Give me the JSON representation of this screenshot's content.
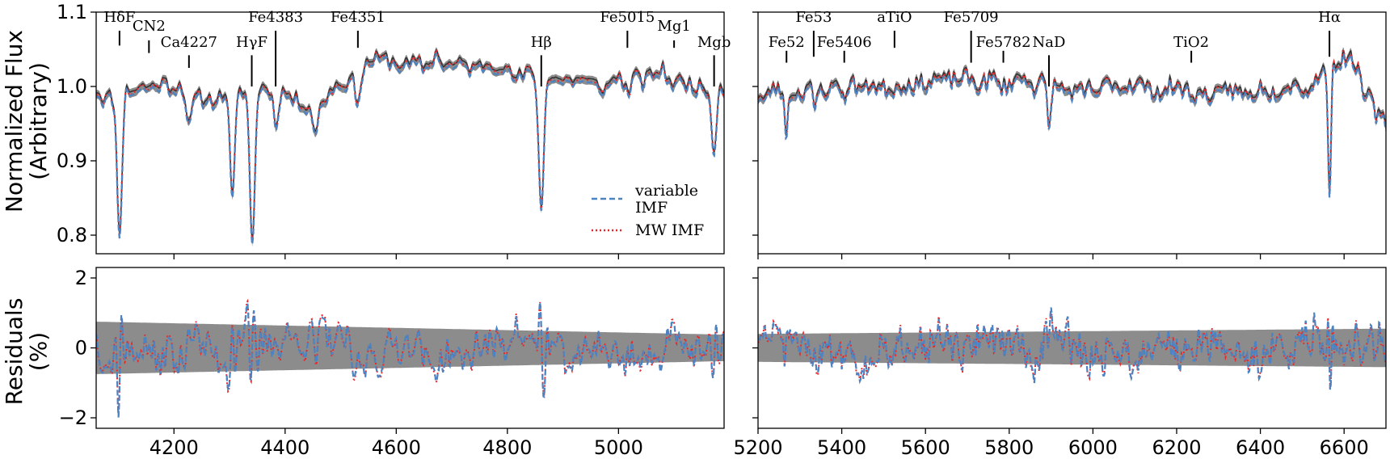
{
  "chart_data": [
    {
      "type": "line",
      "panel": "top-left",
      "ylabel": [
        "Normalized Flux",
        "(Arbitrary)"
      ],
      "xlim": [
        4060,
        5190
      ],
      "ylim": [
        0.775,
        1.1
      ],
      "xticks": [
        4200,
        4400,
        4600,
        4800,
        5000
      ],
      "yticks": [
        0.8,
        0.9,
        1.0,
        1.1
      ],
      "ytick_labels": [
        "0.8",
        "0.9",
        "1.0",
        "1.1"
      ],
      "series": [
        {
          "name": "variable IMF",
          "style": "dashed",
          "color": "#4C83C2"
        },
        {
          "name": "MW IMF",
          "style": "dotted",
          "color": "#E8262A"
        }
      ],
      "data_band": "grey",
      "absorption_lines": [
        {
          "x": 4102,
          "depth": 0.185
        },
        {
          "x": 4227,
          "depth": 0.04
        },
        {
          "x": 4305,
          "depth": 0.15
        },
        {
          "x": 4341,
          "depth": 0.21
        },
        {
          "x": 4383,
          "depth": 0.05
        },
        {
          "x": 4455,
          "depth": 0.03
        },
        {
          "x": 4531,
          "depth": 0.03
        },
        {
          "x": 4861,
          "depth": 0.18
        },
        {
          "x": 5016,
          "depth": 0.02
        },
        {
          "x": 5172,
          "depth": 0.08
        }
      ],
      "annotations": [
        {
          "label": "HδF",
          "x": 4102,
          "y_label": 1.087,
          "y_top": 1.075,
          "y_bot": 1.055
        },
        {
          "label": "CN2",
          "x": 4155,
          "y_label": 1.075,
          "y_top": 1.062,
          "y_bot": 1.045
        },
        {
          "label": "Ca4227",
          "x": 4227,
          "y_label": 1.053,
          "y_top": 1.042,
          "y_bot": 1.025
        },
        {
          "label": "HγF",
          "x": 4340,
          "y_label": 1.053,
          "y_top": 1.042,
          "y_bot": 1.0
        },
        {
          "label": "Fe4383",
          "x": 4383,
          "y_label": 1.087,
          "y_top": 1.075,
          "y_bot": 1.0
        },
        {
          "label": "Fe4351",
          "x": 4531,
          "y_label": 1.087,
          "y_top": 1.075,
          "y_bot": 1.052
        },
        {
          "label": "Hβ",
          "x": 4861,
          "y_label": 1.053,
          "y_top": 1.042,
          "y_bot": 1.0
        },
        {
          "label": "Fe5015",
          "x": 5016,
          "y_label": 1.087,
          "y_top": 1.075,
          "y_bot": 1.052
        },
        {
          "label": "Mg1",
          "x": 5100,
          "y_label": 1.075,
          "y_top": 1.062,
          "y_bot": 1.052
        },
        {
          "label": "Mgb",
          "x": 5172,
          "y_label": 1.053,
          "y_top": 1.042,
          "y_bot": 1.0
        }
      ],
      "legend": {
        "placement": "lower-right",
        "entries": [
          "variable",
          "IMF",
          "MW IMF"
        ]
      }
    },
    {
      "type": "line",
      "panel": "top-right",
      "xlim": [
        5200,
        6700
      ],
      "ylim": [
        0.775,
        1.1
      ],
      "xticks": [
        5200,
        5400,
        5600,
        5800,
        6000,
        6200,
        6400,
        6600
      ],
      "absorption_lines": [
        {
          "x": 5268,
          "depth": 0.05
        },
        {
          "x": 5335,
          "depth": 0.03
        },
        {
          "x": 5406,
          "depth": 0.02
        },
        {
          "x": 5895,
          "depth": 0.06
        },
        {
          "x": 5980,
          "depth": 0.015
        },
        {
          "x": 6565,
          "depth": 0.17
        }
      ],
      "annotations": [
        {
          "label": "Fe53",
          "x": 5333,
          "y_label": 1.087,
          "y_top": 1.075,
          "y_bot": 1.04
        },
        {
          "label": "aTiO",
          "x": 5526,
          "y_label": 1.087,
          "y_top": 1.075,
          "y_bot": 1.052
        },
        {
          "label": "Fe5709",
          "x": 5709,
          "y_label": 1.087,
          "y_top": 1.075,
          "y_bot": 1.032
        },
        {
          "label": "Fe52",
          "x": 5268,
          "y_label": 1.053,
          "y_top": 1.048,
          "y_bot": 1.032
        },
        {
          "label": "Fe5406",
          "x": 5406,
          "y_label": 1.053,
          "y_top": 1.048,
          "y_bot": 1.032
        },
        {
          "label": "Fe5782",
          "x": 5786,
          "y_label": 1.053,
          "y_top": 1.048,
          "y_bot": 1.032
        },
        {
          "label": "NaD",
          "x": 5895,
          "y_label": 1.053,
          "y_top": 1.042,
          "y_bot": 1.0
        },
        {
          "label": "TiO2",
          "x": 6235,
          "y_label": 1.053,
          "y_top": 1.048,
          "y_bot": 1.032
        },
        {
          "label": "Hα",
          "x": 6565,
          "y_label": 1.087,
          "y_top": 1.075,
          "y_bot": 1.04
        }
      ]
    },
    {
      "type": "line",
      "panel": "bottom-left",
      "ylabel": [
        "Residuals",
        "(%)"
      ],
      "xlim": [
        4060,
        5190
      ],
      "ylim": [
        -2.3,
        2.3
      ],
      "xticks": [
        4200,
        4400,
        4600,
        4800,
        5000
      ],
      "xtick_labels": [
        "4200",
        "4400",
        "4600",
        "4800",
        "5000"
      ],
      "yticks": [
        -2,
        0,
        2
      ],
      "ytick_labels": [
        "−2",
        "0",
        "2"
      ],
      "error_band": {
        "start_halfwidth": 0.75,
        "end_halfwidth": 0.38
      }
    },
    {
      "type": "line",
      "panel": "bottom-right",
      "xlim": [
        5200,
        6700
      ],
      "ylim": [
        -2.3,
        2.3
      ],
      "xticks": [
        5200,
        5400,
        5600,
        5800,
        6000,
        6200,
        6400,
        6600
      ],
      "xtick_labels": [
        "5200",
        "5400",
        "5600",
        "5800",
        "6000",
        "6200",
        "6400",
        "6600"
      ],
      "error_band": {
        "start_halfwidth": 0.4,
        "end_halfwidth": 0.55
      }
    }
  ]
}
